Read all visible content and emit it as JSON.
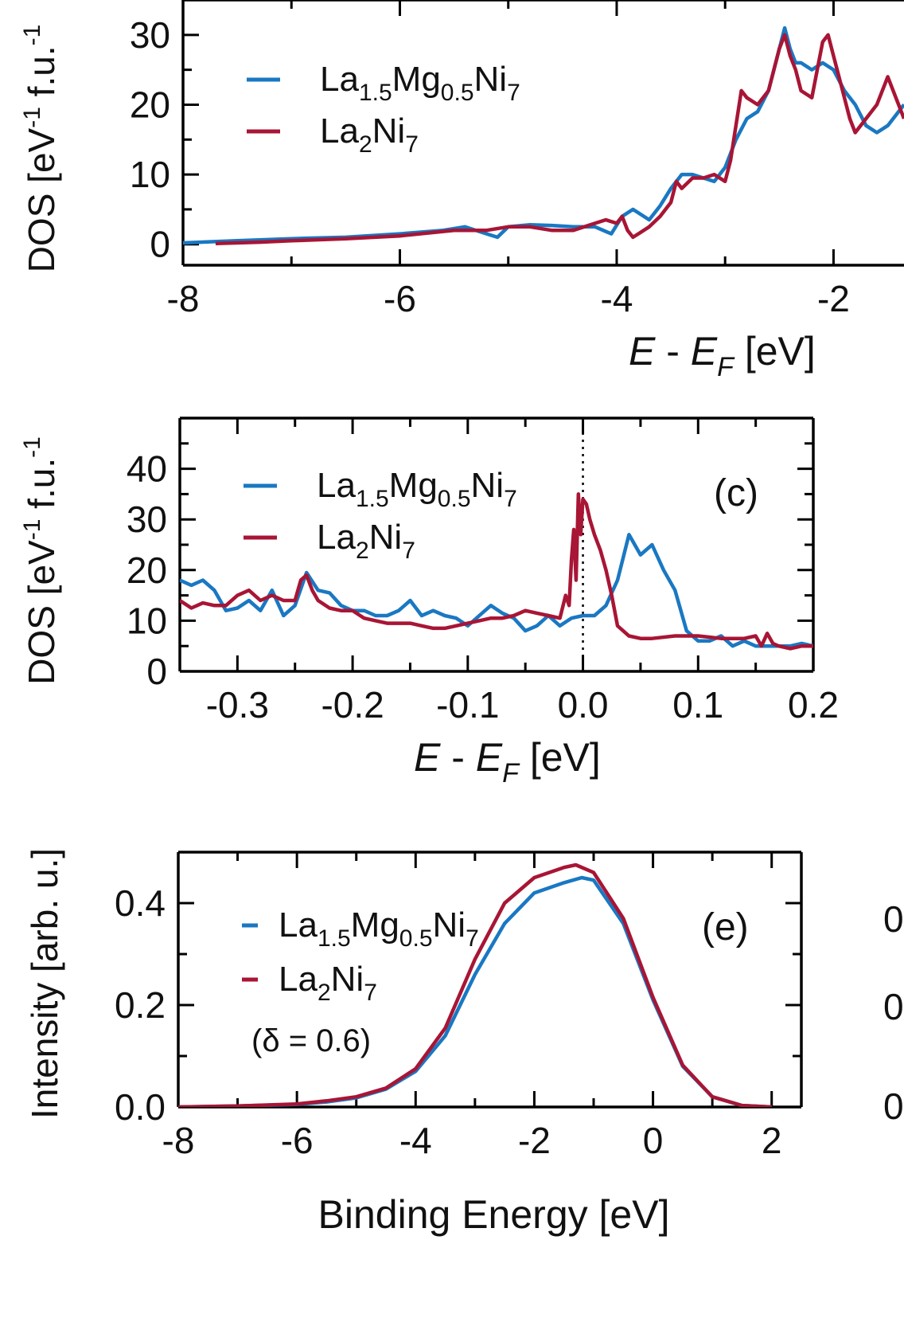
{
  "colors": {
    "series_mg": "#1a78c2",
    "series_la2ni7": "#a81535",
    "axis": "#000000"
  },
  "chart_data": [
    {
      "id": "top",
      "type": "line",
      "panel_label": "",
      "xlabel": {
        "italic_main": "E",
        "dash": " - ",
        "sub_main": "E",
        "sub": "F",
        "unit": "[eV]"
      },
      "ylabel": "DOS [eV",
      "ylabel_sup": "-1",
      "ylabel_tail": " f.u.",
      "ylabel_sup2": "-1",
      "xlim": [
        -8,
        -1.35
      ],
      "ylim": [
        -3,
        35
      ],
      "xticks": [
        -8,
        -6,
        -4,
        -2
      ],
      "xtick_labels": [
        "-8",
        "-6",
        "-4",
        "-2"
      ],
      "xminor": [
        -7,
        -5,
        -3
      ],
      "yticks": [
        0,
        10,
        20,
        30
      ],
      "ytick_labels": [
        "0",
        "10",
        "20",
        "30"
      ],
      "yminor": [
        5,
        15,
        25
      ],
      "legend": [
        {
          "parts": [
            "La",
            "1.5",
            "Mg",
            "0.5",
            "Ni",
            "7"
          ],
          "color": "series_mg"
        },
        {
          "parts": [
            "La",
            "2",
            "Ni",
            "7"
          ],
          "color": "series_la2ni7"
        }
      ],
      "series": [
        {
          "name": "La1.5Mg0.5Ni7",
          "color": "series_mg",
          "x": [
            -8.0,
            -7.5,
            -7.0,
            -6.5,
            -6.0,
            -5.6,
            -5.4,
            -5.2,
            -5.1,
            -5.0,
            -4.8,
            -4.6,
            -4.4,
            -4.2,
            -4.05,
            -3.95,
            -3.85,
            -3.7,
            -3.6,
            -3.5,
            -3.4,
            -3.3,
            -3.2,
            -3.1,
            -3.0,
            -2.9,
            -2.8,
            -2.7,
            -2.6,
            -2.5,
            -2.45,
            -2.4,
            -2.35,
            -2.3,
            -2.2,
            -2.1,
            -2.0,
            -1.9,
            -1.8,
            -1.7,
            -1.6,
            -1.5,
            -1.35
          ],
          "y": [
            0.2,
            0.5,
            0.8,
            1.0,
            1.5,
            2.0,
            2.5,
            1.5,
            1.0,
            2.5,
            2.8,
            2.7,
            2.5,
            2.5,
            1.5,
            4.0,
            5.0,
            3.5,
            5.5,
            8.0,
            10.0,
            10.0,
            9.5,
            9.0,
            11.0,
            15.0,
            18.0,
            19.0,
            22.0,
            28.0,
            31.0,
            28.0,
            26.0,
            26.0,
            25.0,
            26.0,
            25.0,
            22.0,
            20.0,
            17.0,
            16.0,
            17.0,
            20.0
          ]
        },
        {
          "name": "La2Ni7",
          "color": "series_la2ni7",
          "x": [
            -7.7,
            -7.3,
            -7.0,
            -6.5,
            -6.0,
            -5.5,
            -5.2,
            -5.0,
            -4.8,
            -4.6,
            -4.4,
            -4.2,
            -4.1,
            -4.0,
            -3.95,
            -3.9,
            -3.85,
            -3.8,
            -3.7,
            -3.6,
            -3.5,
            -3.45,
            -3.4,
            -3.3,
            -3.2,
            -3.1,
            -3.0,
            -2.95,
            -2.9,
            -2.85,
            -2.8,
            -2.7,
            -2.6,
            -2.5,
            -2.45,
            -2.4,
            -2.35,
            -2.3,
            -2.2,
            -2.15,
            -2.1,
            -2.05,
            -2.0,
            -1.95,
            -1.9,
            -1.85,
            -1.8,
            -1.7,
            -1.6,
            -1.5,
            -1.4,
            -1.35
          ],
          "y": [
            0.1,
            0.3,
            0.5,
            0.8,
            1.2,
            2.0,
            2.0,
            2.5,
            2.5,
            2.0,
            2.0,
            3.0,
            3.5,
            3.0,
            4.0,
            2.0,
            1.0,
            1.5,
            2.5,
            4.0,
            6.0,
            9.0,
            8.0,
            9.5,
            9.5,
            10.0,
            9.0,
            12.0,
            17.0,
            22.0,
            21.0,
            20.0,
            22.0,
            28.0,
            30.0,
            27.0,
            25.0,
            22.0,
            21.0,
            25.0,
            29.0,
            30.0,
            27.0,
            24.0,
            21.0,
            18.0,
            16.0,
            18.0,
            20.0,
            24.0,
            20.0,
            18.0
          ]
        }
      ]
    },
    {
      "id": "mid",
      "type": "line",
      "panel_label": "(c)",
      "xlabel": {
        "italic_main": "E",
        "dash": " - ",
        "sub_main": "E",
        "sub": "F",
        "unit": "[eV]"
      },
      "ylabel": "DOS [eV",
      "ylabel_sup": "-1",
      "ylabel_tail": " f.u.",
      "ylabel_sup2": "-1",
      "xlim": [
        -0.35,
        0.2
      ],
      "ylim": [
        0,
        50
      ],
      "xticks": [
        -0.3,
        -0.2,
        -0.1,
        0.0,
        0.1,
        0.2
      ],
      "xtick_labels": [
        "-0.3",
        "-0.2",
        "-0.1",
        "0.0",
        "0.1",
        "0.2"
      ],
      "xminor": [
        -0.25,
        -0.15,
        -0.05,
        0.05,
        0.15
      ],
      "yticks": [
        0,
        10,
        20,
        30,
        40
      ],
      "ytick_labels": [
        "0",
        "10",
        "20",
        "30",
        "40"
      ],
      "yminor": [
        5,
        15,
        25,
        35,
        45
      ],
      "fermi_line_x": 0.0,
      "legend": [
        {
          "parts": [
            "La",
            "1.5",
            "Mg",
            "0.5",
            "Ni",
            "7"
          ],
          "color": "series_mg"
        },
        {
          "parts": [
            "La",
            "2",
            "Ni",
            "7"
          ],
          "color": "series_la2ni7"
        }
      ],
      "series": [
        {
          "name": "La1.5Mg0.5Ni7",
          "color": "series_mg",
          "x": [
            -0.35,
            -0.34,
            -0.33,
            -0.32,
            -0.31,
            -0.3,
            -0.29,
            -0.28,
            -0.27,
            -0.26,
            -0.25,
            -0.24,
            -0.23,
            -0.22,
            -0.21,
            -0.2,
            -0.19,
            -0.18,
            -0.17,
            -0.16,
            -0.15,
            -0.14,
            -0.13,
            -0.12,
            -0.11,
            -0.1,
            -0.09,
            -0.08,
            -0.07,
            -0.06,
            -0.05,
            -0.04,
            -0.03,
            -0.02,
            -0.01,
            0.0,
            0.01,
            0.02,
            0.03,
            0.04,
            0.05,
            0.06,
            0.07,
            0.08,
            0.09,
            0.1,
            0.11,
            0.12,
            0.13,
            0.14,
            0.15,
            0.16,
            0.17,
            0.18,
            0.19,
            0.2
          ],
          "y": [
            18,
            17,
            18,
            16,
            12,
            12.5,
            14,
            12,
            16,
            11,
            13,
            19.5,
            16,
            15.5,
            13,
            12,
            12,
            11,
            11,
            12,
            14,
            11,
            12,
            11,
            10.5,
            9,
            11,
            13,
            11.5,
            10.5,
            8,
            9,
            11,
            9,
            10.5,
            11,
            11,
            13,
            18,
            27,
            23,
            25,
            20,
            16,
            8,
            6,
            6,
            7,
            5,
            6,
            5,
            5,
            5,
            5,
            5.5,
            5
          ]
        },
        {
          "name": "La2Ni7",
          "color": "series_la2ni7",
          "x": [
            -0.35,
            -0.34,
            -0.33,
            -0.32,
            -0.31,
            -0.3,
            -0.29,
            -0.28,
            -0.27,
            -0.26,
            -0.25,
            -0.245,
            -0.24,
            -0.235,
            -0.23,
            -0.22,
            -0.21,
            -0.2,
            -0.19,
            -0.18,
            -0.17,
            -0.16,
            -0.15,
            -0.14,
            -0.13,
            -0.12,
            -0.11,
            -0.1,
            -0.09,
            -0.08,
            -0.07,
            -0.06,
            -0.05,
            -0.04,
            -0.03,
            -0.02,
            -0.015,
            -0.012,
            -0.01,
            -0.008,
            -0.006,
            -0.004,
            -0.002,
            0.0,
            0.003,
            0.006,
            0.01,
            0.015,
            0.02,
            0.025,
            0.03,
            0.04,
            0.05,
            0.06,
            0.08,
            0.1,
            0.12,
            0.14,
            0.15,
            0.155,
            0.16,
            0.165,
            0.17,
            0.18,
            0.19,
            0.2
          ],
          "y": [
            14,
            12.5,
            13.5,
            13,
            13,
            15,
            16,
            14,
            15,
            14,
            14,
            18,
            19,
            16,
            14,
            12.5,
            12,
            12,
            10.5,
            10,
            9.5,
            9.5,
            9.5,
            9,
            8.5,
            8.5,
            9,
            9.5,
            10,
            10.5,
            10.5,
            11,
            12,
            11.5,
            11,
            10.5,
            15,
            13,
            22,
            28,
            18,
            35,
            27,
            34,
            33,
            30,
            27,
            24,
            20,
            15,
            9,
            7,
            6.5,
            6.5,
            7,
            7,
            6.5,
            6.5,
            7,
            5,
            7.5,
            5.5,
            5,
            4.5,
            5,
            5
          ]
        }
      ]
    },
    {
      "id": "bot",
      "type": "line",
      "panel_label": "(e)",
      "xlabel_text": "Binding Energy [eV]",
      "ylabel": "Intensity [arb. u.]",
      "annotation": "(δ = 0.6)",
      "xlim": [
        -8,
        2.5
      ],
      "ylim": [
        0,
        0.5
      ],
      "xticks": [
        -8,
        -6,
        -4,
        -2,
        0,
        2
      ],
      "xtick_labels": [
        "-8",
        "-6",
        "-4",
        "-2",
        "0",
        "2"
      ],
      "xminor": [
        -7,
        -5,
        -3,
        -1,
        1
      ],
      "yticks": [
        0.0,
        0.2,
        0.4
      ],
      "ytick_labels": [
        "0.0",
        "0.2",
        "0.4"
      ],
      "yminor": [
        0.1,
        0.3
      ],
      "legend": [
        {
          "parts": [
            "La",
            "1.5",
            "Mg",
            "0.5",
            "Ni",
            "7"
          ],
          "color": "series_mg"
        },
        {
          "parts": [
            "La",
            "2",
            "Ni",
            "7"
          ],
          "color": "series_la2ni7"
        }
      ],
      "right_edge_ticks": [
        "0",
        "0",
        "0"
      ],
      "series": [
        {
          "name": "La1.5Mg0.5Ni7",
          "color": "series_mg",
          "x": [
            -8,
            -7,
            -6,
            -5.5,
            -5,
            -4.5,
            -4,
            -3.5,
            -3,
            -2.5,
            -2,
            -1.5,
            -1.2,
            -1,
            -0.5,
            0,
            0.5,
            1,
            1.5,
            2
          ],
          "y": [
            0,
            0.002,
            0.005,
            0.01,
            0.018,
            0.035,
            0.07,
            0.14,
            0.26,
            0.36,
            0.42,
            0.44,
            0.45,
            0.445,
            0.36,
            0.21,
            0.08,
            0.02,
            0.003,
            0
          ]
        },
        {
          "name": "La2Ni7",
          "color": "series_la2ni7",
          "x": [
            -8,
            -7,
            -6,
            -5.5,
            -5,
            -4.5,
            -4,
            -3.5,
            -3,
            -2.5,
            -2,
            -1.5,
            -1.3,
            -1,
            -0.5,
            0,
            0.5,
            1,
            1.5,
            2
          ],
          "y": [
            0,
            0.002,
            0.006,
            0.012,
            0.02,
            0.037,
            0.075,
            0.155,
            0.29,
            0.4,
            0.45,
            0.47,
            0.475,
            0.46,
            0.37,
            0.215,
            0.082,
            0.02,
            0.003,
            0
          ]
        }
      ]
    }
  ]
}
